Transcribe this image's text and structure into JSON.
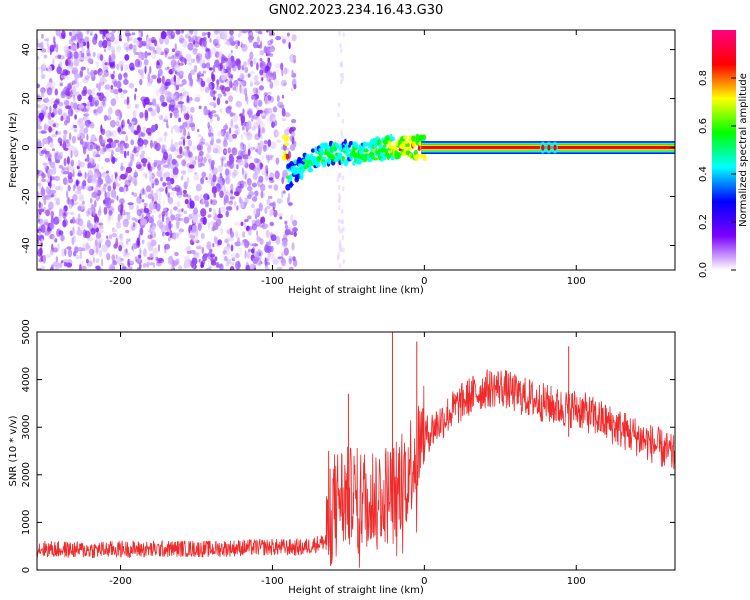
{
  "title": "GN02.2023.234.16.43.G30",
  "colors": {
    "snr_line": "#ee2a2a",
    "low_amp": "#8a2be2",
    "high_amp": "#ff0000"
  },
  "chart_data": [
    {
      "type": "heatmap",
      "title": "",
      "xlabel": "Height of straight line (km)",
      "ylabel": "Frequency (Hz)",
      "xlim": [
        -255,
        165
      ],
      "ylim": [
        -50,
        48
      ],
      "xticks": [
        -200,
        -100,
        0,
        100
      ],
      "yticks": [
        -40,
        -20,
        0,
        20,
        40
      ],
      "grid": false,
      "colorbar": {
        "label": "Normalized spectral amplitude",
        "range": [
          0.0,
          1.0
        ],
        "ticks": [
          0.0,
          0.2,
          0.4,
          0.6,
          0.8
        ],
        "tick_labels": [
          "0.0",
          "0.2",
          "0.4",
          "0.6",
          "0.8"
        ],
        "stops": [
          "#ffffff",
          "#7b00ff",
          "#0000ff",
          "#00ffff",
          "#00ff00",
          "#ffff00",
          "#ff0000",
          "#ff0080"
        ]
      },
      "noise_region_x": [
        -255,
        -85
      ],
      "ridge": [
        {
          "x": -90,
          "f": -12,
          "a": 0.45
        },
        {
          "x": -80,
          "f": -8,
          "a": 0.5
        },
        {
          "x": -70,
          "f": -4,
          "a": 0.55
        },
        {
          "x": -60,
          "f": -2,
          "a": 0.55
        },
        {
          "x": -50,
          "f": -2,
          "a": 0.5
        },
        {
          "x": -40,
          "f": -3,
          "a": 0.6
        },
        {
          "x": -30,
          "f": -1,
          "a": 0.6
        },
        {
          "x": -20,
          "f": 0,
          "a": 0.7
        },
        {
          "x": -10,
          "f": 0,
          "a": 0.75
        },
        {
          "x": 0,
          "f": 0,
          "a": 0.85
        },
        {
          "x": 20,
          "f": 0,
          "a": 0.9
        },
        {
          "x": 50,
          "f": 0,
          "a": 0.9
        },
        {
          "x": 80,
          "f": 0,
          "a": 0.85
        },
        {
          "x": 100,
          "f": 0,
          "a": 0.9
        },
        {
          "x": 130,
          "f": 0,
          "a": 0.9
        },
        {
          "x": 165,
          "f": 0,
          "a": 0.85
        }
      ]
    },
    {
      "type": "line",
      "title": "",
      "xlabel": "Height of straight line (km)",
      "ylabel": "SNR (10 * v/v)",
      "xlim": [
        -255,
        165
      ],
      "ylim": [
        0,
        5000
      ],
      "xticks": [
        -200,
        -100,
        0,
        100
      ],
      "yticks": [
        0,
        1000,
        2000,
        3000,
        4000,
        5000
      ],
      "grid": false,
      "series": [
        {
          "x": [
            -255,
            -240,
            -220,
            -200,
            -180,
            -160,
            -140,
            -120,
            -100,
            -80,
            -65,
            -60,
            -55,
            -50,
            -40,
            -30,
            -20,
            -10,
            0,
            10,
            20,
            30,
            40,
            50,
            60,
            70,
            80,
            90,
            100,
            110,
            120,
            130,
            140,
            150,
            165
          ],
          "values": [
            450,
            430,
            420,
            440,
            430,
            450,
            440,
            470,
            480,
            470,
            600,
            1400,
            1600,
            1500,
            1500,
            1600,
            1600,
            2200,
            2800,
            3100,
            3400,
            3650,
            3800,
            3850,
            3700,
            3600,
            3500,
            3400,
            3400,
            3250,
            3100,
            2950,
            2800,
            2650,
            2400
          ]
        }
      ],
      "spikes": [
        {
          "x": -63,
          "y": 2500
        },
        {
          "x": -50,
          "y": 3700
        },
        {
          "x": -21,
          "y": 5000
        },
        {
          "x": -5,
          "y": 4800
        },
        {
          "x": 95,
          "y": 4700
        }
      ]
    }
  ]
}
